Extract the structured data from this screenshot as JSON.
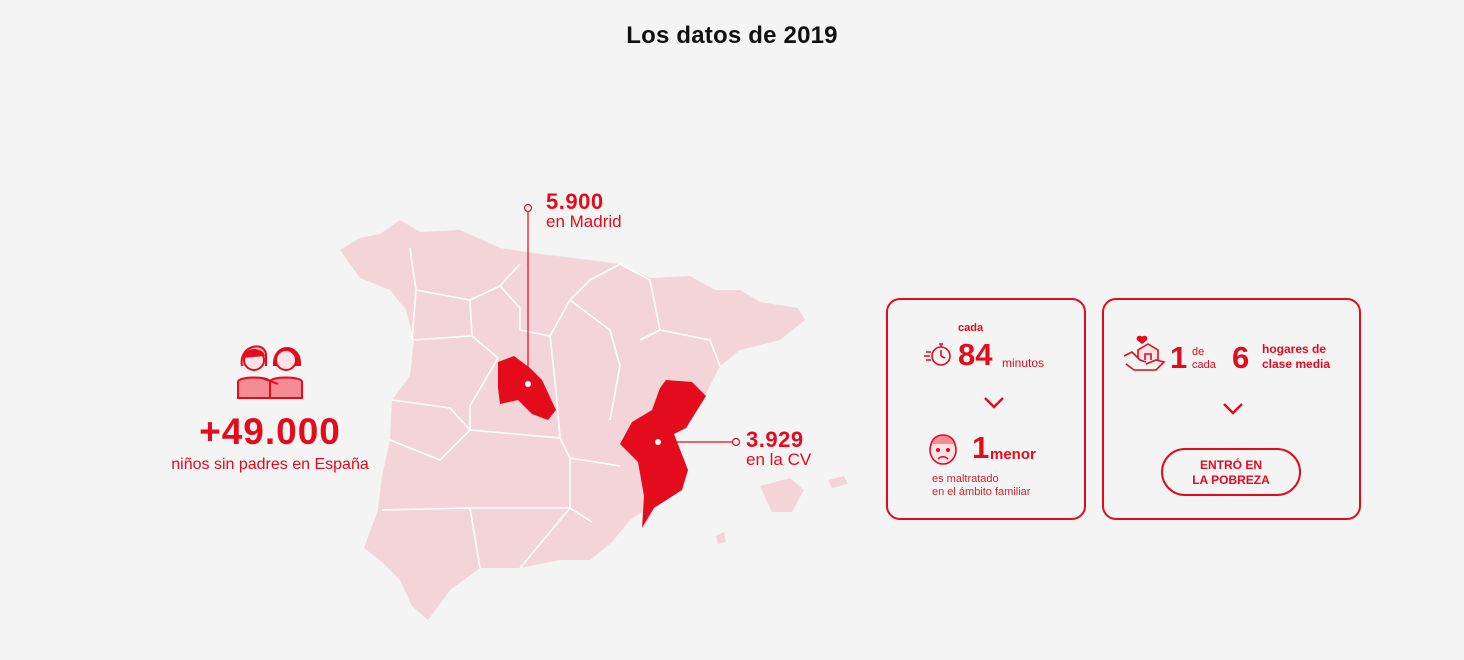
{
  "heading": "Los datos de 2019",
  "colors": {
    "brand": "#e30b1c",
    "map_base": "#f3d4d8",
    "map_highlight": "#e30b1c",
    "background": "#f4f4f4"
  },
  "spain": {
    "icon": "children-pair-icon",
    "value": "+49.000",
    "label": "niños sin padres en España"
  },
  "madrid": {
    "value": "5.900",
    "label": "en Madrid"
  },
  "cv": {
    "value": "3.929",
    "label": "en la CV"
  },
  "abuse_card": {
    "stopwatch_icon": "stopwatch-icon",
    "cada": "cada",
    "minutes_value": "84",
    "minutes_label": "minutos",
    "chevron_icon": "chevron-down-icon",
    "face_icon": "sad-child-face-icon",
    "menor_value": "1",
    "menor_label": "menor",
    "description_line1": "es maltratado",
    "description_line2": "en el ámbito familiar"
  },
  "poverty_card": {
    "house_icon": "hand-house-heart-icon",
    "one": "1",
    "de": "de",
    "cada": "cada",
    "six": "6",
    "households_line1": "hogares de",
    "households_line2": "clase media",
    "chevron_icon": "chevron-down-icon",
    "button_line1": "ENTRÓ EN",
    "button_line2": "LA POBREZA"
  }
}
